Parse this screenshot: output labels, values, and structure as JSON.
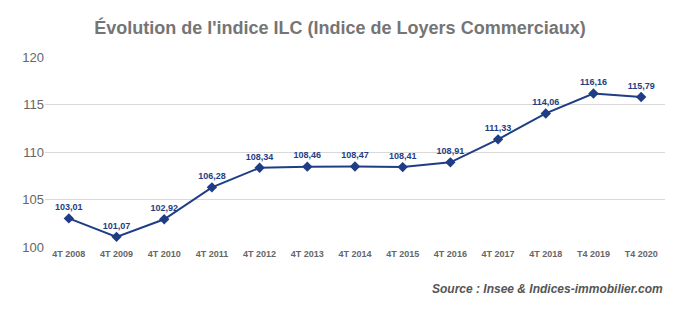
{
  "chart_data": {
    "type": "line",
    "title": "Évolution de l'indice ILC (Indice de Loyers Commerciaux)",
    "annotations": [
      "Source : Insee & Indices-immobilier.com"
    ],
    "categories": [
      "4T 2008",
      "4T 2009",
      "4T 2010",
      "4T 2011",
      "4T 2012",
      "4T 2013",
      "4T 2014",
      "4T 2015",
      "4T 2016",
      "4T 2017",
      "4T 2018",
      "T4 2019",
      "T4 2020"
    ],
    "values": [
      103.01,
      101.07,
      102.92,
      106.28,
      108.34,
      108.46,
      108.47,
      108.41,
      108.91,
      111.33,
      114.06,
      116.16,
      115.79
    ],
    "value_labels": [
      "103,01",
      "101,07",
      "102,92",
      "106,28",
      "108,34",
      "108,46",
      "108,47",
      "108,41",
      "108,91",
      "111,33",
      "114,06",
      "116,16",
      "115,79"
    ],
    "data_labels": true,
    "color": "#1f3d85",
    "marker": "diamond",
    "ylim": [
      100,
      120
    ],
    "yticks": [
      100,
      105,
      110,
      115,
      120
    ],
    "grid": true
  }
}
